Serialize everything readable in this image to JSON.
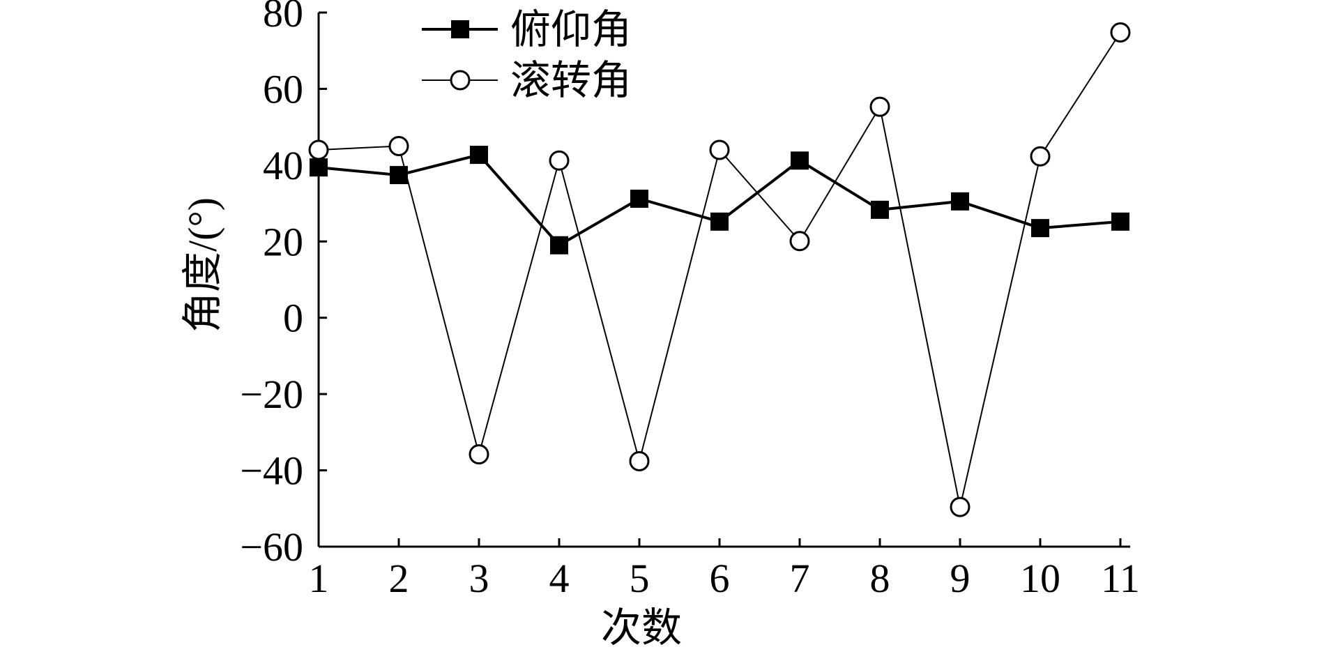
{
  "chart_data": {
    "type": "line",
    "x_label": "次数",
    "y_label": "角度/(°)",
    "x": [
      1,
      2,
      3,
      4,
      5,
      6,
      7,
      8,
      9,
      10,
      11
    ],
    "series": [
      {
        "name": "俯仰角",
        "color": "#000000",
        "marker": "square",
        "values": [
          39.4,
          37.4,
          42.7,
          19,
          31.2,
          25.2,
          41.2,
          28.3,
          30.5,
          23.5,
          25.2
        ]
      },
      {
        "name": "滚转角",
        "color": "#000000",
        "marker": "circle",
        "values": [
          44,
          45,
          -35.8,
          41.2,
          -37.6,
          44,
          20.1,
          55.3,
          -49.6,
          42.3,
          74.8
        ]
      }
    ],
    "xlim": [
      1,
      11
    ],
    "xticks": [
      1,
      2,
      3,
      4,
      5,
      6,
      7,
      8,
      9,
      10,
      11
    ],
    "ylim": [
      -60,
      80
    ],
    "yticks": [
      {
        "value": -60,
        "label": "−60"
      },
      {
        "value": -40,
        "label": "−40"
      },
      {
        "value": -20,
        "label": "−20"
      },
      0,
      20,
      40,
      60,
      80
    ],
    "grid": false,
    "legend": "upper left"
  }
}
